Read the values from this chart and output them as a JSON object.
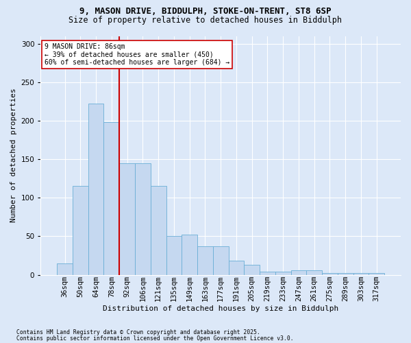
{
  "title_line1": "9, MASON DRIVE, BIDDULPH, STOKE-ON-TRENT, ST8 6SP",
  "title_line2": "Size of property relative to detached houses in Biddulph",
  "xlabel": "Distribution of detached houses by size in Biddulph",
  "ylabel": "Number of detached properties",
  "categories": [
    "36sqm",
    "50sqm",
    "64sqm",
    "78sqm",
    "92sqm",
    "106sqm",
    "121sqm",
    "135sqm",
    "149sqm",
    "163sqm",
    "177sqm",
    "191sqm",
    "205sqm",
    "219sqm",
    "233sqm",
    "247sqm",
    "261sqm",
    "275sqm",
    "289sqm",
    "303sqm",
    "317sqm"
  ],
  "values": [
    15,
    115,
    222,
    198,
    145,
    145,
    115,
    50,
    52,
    37,
    37,
    18,
    13,
    4,
    4,
    6,
    6,
    2,
    2,
    2,
    2
  ],
  "bar_color": "#c5d8f0",
  "bar_edge_color": "#6aaed6",
  "vline_x": 3.5,
  "vline_color": "#cc0000",
  "annotation_text": "9 MASON DRIVE: 86sqm\n← 39% of detached houses are smaller (450)\n60% of semi-detached houses are larger (684) →",
  "annotation_box_color": "#ffffff",
  "annotation_box_edge": "#cc0000",
  "ylim": [
    0,
    310
  ],
  "yticks": [
    0,
    50,
    100,
    150,
    200,
    250,
    300
  ],
  "footnote1": "Contains HM Land Registry data © Crown copyright and database right 2025.",
  "footnote2": "Contains public sector information licensed under the Open Government Licence v3.0.",
  "background_color": "#dce8f8",
  "plot_bg_color": "#dce8f8",
  "title_fontsize": 9,
  "subtitle_fontsize": 8.5,
  "ylabel_fontsize": 8,
  "xlabel_fontsize": 8,
  "tick_fontsize": 7.5,
  "annot_fontsize": 7
}
